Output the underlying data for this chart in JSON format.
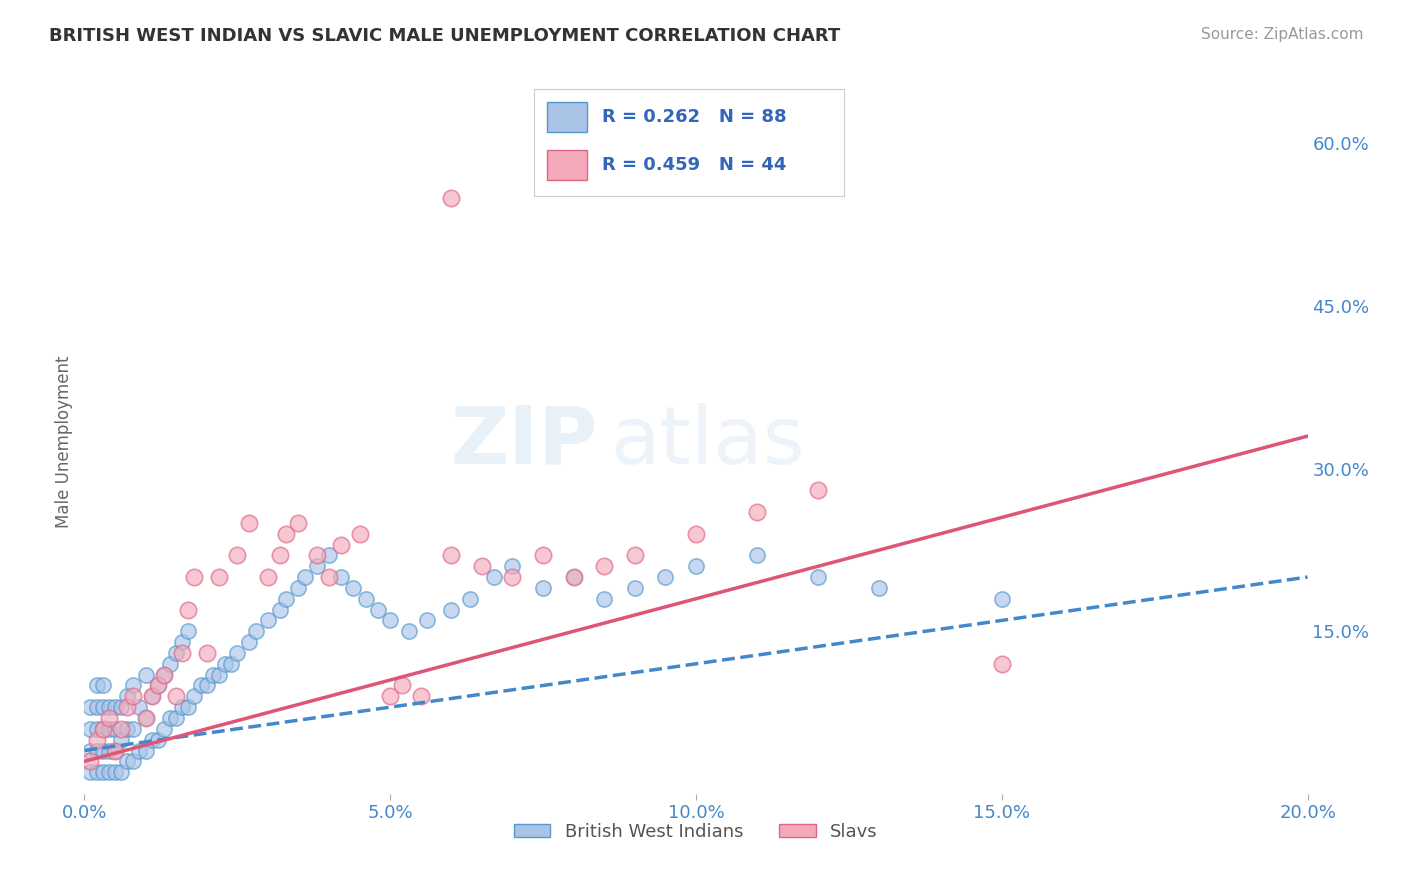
{
  "title": "BRITISH WEST INDIAN VS SLAVIC MALE UNEMPLOYMENT CORRELATION CHART",
  "source_text": "Source: ZipAtlas.com",
  "ylabel": "Male Unemployment",
  "xlim": [
    0.0,
    0.2
  ],
  "ylim": [
    0.0,
    0.65
  ],
  "xtick_labels": [
    "0.0%",
    "5.0%",
    "10.0%",
    "15.0%",
    "20.0%"
  ],
  "xtick_vals": [
    0.0,
    0.05,
    0.1,
    0.15,
    0.2
  ],
  "ytick_labels_right": [
    "15.0%",
    "30.0%",
    "45.0%",
    "60.0%"
  ],
  "ytick_vals_right": [
    0.15,
    0.3,
    0.45,
    0.6
  ],
  "bwi_color": "#aac4e8",
  "bwi_edge_color": "#5599cc",
  "slav_color": "#f4aabb",
  "slav_edge_color": "#dd6688",
  "bwi_line_color": "#4488cc",
  "slav_line_color": "#dd5577",
  "legend_R_bwi": "R = 0.262",
  "legend_N_bwi": "N = 88",
  "legend_R_slav": "R = 0.459",
  "legend_N_slav": "N = 44",
  "watermark_zip": "ZIP",
  "watermark_atlas": "atlas",
  "bwi_scatter_x": [
    0.001,
    0.001,
    0.001,
    0.001,
    0.002,
    0.002,
    0.002,
    0.002,
    0.002,
    0.003,
    0.003,
    0.003,
    0.003,
    0.003,
    0.004,
    0.004,
    0.004,
    0.004,
    0.005,
    0.005,
    0.005,
    0.005,
    0.006,
    0.006,
    0.006,
    0.007,
    0.007,
    0.007,
    0.008,
    0.008,
    0.008,
    0.009,
    0.009,
    0.01,
    0.01,
    0.01,
    0.011,
    0.011,
    0.012,
    0.012,
    0.013,
    0.013,
    0.014,
    0.014,
    0.015,
    0.015,
    0.016,
    0.016,
    0.017,
    0.017,
    0.018,
    0.019,
    0.02,
    0.021,
    0.022,
    0.023,
    0.024,
    0.025,
    0.027,
    0.028,
    0.03,
    0.032,
    0.033,
    0.035,
    0.036,
    0.038,
    0.04,
    0.042,
    0.044,
    0.046,
    0.048,
    0.05,
    0.053,
    0.056,
    0.06,
    0.063,
    0.067,
    0.07,
    0.075,
    0.08,
    0.085,
    0.09,
    0.095,
    0.1,
    0.11,
    0.12,
    0.13,
    0.15
  ],
  "bwi_scatter_y": [
    0.02,
    0.04,
    0.06,
    0.08,
    0.02,
    0.04,
    0.06,
    0.08,
    0.1,
    0.02,
    0.04,
    0.06,
    0.08,
    0.1,
    0.02,
    0.04,
    0.06,
    0.08,
    0.02,
    0.04,
    0.06,
    0.08,
    0.02,
    0.05,
    0.08,
    0.03,
    0.06,
    0.09,
    0.03,
    0.06,
    0.1,
    0.04,
    0.08,
    0.04,
    0.07,
    0.11,
    0.05,
    0.09,
    0.05,
    0.1,
    0.06,
    0.11,
    0.07,
    0.12,
    0.07,
    0.13,
    0.08,
    0.14,
    0.08,
    0.15,
    0.09,
    0.1,
    0.1,
    0.11,
    0.11,
    0.12,
    0.12,
    0.13,
    0.14,
    0.15,
    0.16,
    0.17,
    0.18,
    0.19,
    0.2,
    0.21,
    0.22,
    0.2,
    0.19,
    0.18,
    0.17,
    0.16,
    0.15,
    0.16,
    0.17,
    0.18,
    0.2,
    0.21,
    0.19,
    0.2,
    0.18,
    0.19,
    0.2,
    0.21,
    0.22,
    0.2,
    0.19,
    0.18
  ],
  "slav_scatter_x": [
    0.001,
    0.002,
    0.003,
    0.004,
    0.005,
    0.006,
    0.007,
    0.008,
    0.01,
    0.011,
    0.012,
    0.013,
    0.015,
    0.016,
    0.017,
    0.018,
    0.02,
    0.022,
    0.025,
    0.027,
    0.03,
    0.032,
    0.033,
    0.035,
    0.038,
    0.04,
    0.042,
    0.045,
    0.05,
    0.052,
    0.055,
    0.06,
    0.065,
    0.07,
    0.075,
    0.08,
    0.085,
    0.09,
    0.1,
    0.11,
    0.12,
    0.15,
    0.06,
    0.075
  ],
  "slav_scatter_y": [
    0.03,
    0.05,
    0.06,
    0.07,
    0.04,
    0.06,
    0.08,
    0.09,
    0.07,
    0.09,
    0.1,
    0.11,
    0.09,
    0.13,
    0.17,
    0.2,
    0.13,
    0.2,
    0.22,
    0.25,
    0.2,
    0.22,
    0.24,
    0.25,
    0.22,
    0.2,
    0.23,
    0.24,
    0.09,
    0.1,
    0.09,
    0.22,
    0.21,
    0.2,
    0.22,
    0.2,
    0.21,
    0.22,
    0.24,
    0.26,
    0.28,
    0.12,
    0.55,
    0.57
  ],
  "bwi_trend_x": [
    0.0,
    0.2
  ],
  "bwi_trend_y": [
    0.04,
    0.2
  ],
  "slav_trend_x": [
    0.0,
    0.2
  ],
  "slav_trend_y": [
    0.03,
    0.33
  ],
  "bg_color": "#ffffff",
  "grid_color": "#cccccc",
  "title_color": "#333333",
  "axis_label_color": "#666666",
  "tick_label_color": "#4488cc",
  "source_color": "#999999",
  "legend_text_color": "#3366bb"
}
